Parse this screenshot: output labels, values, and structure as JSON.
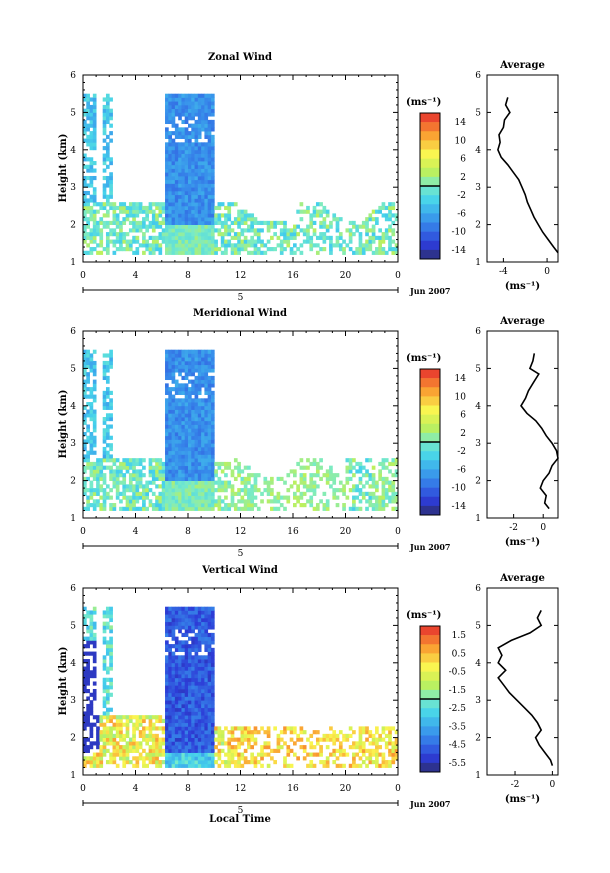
{
  "figure": {
    "xlabel_bottom": "Local Time",
    "date_label": "Jun 2007",
    "day_label": "5",
    "avg_title": "Average",
    "cbar_unit": "(ms⁻¹)",
    "avg_xlabel": "(ms⁻¹)"
  },
  "chart_data": [
    {
      "type": "heatmap",
      "title": "Zonal Wind",
      "ylabel": "Height (km)",
      "xlim": [
        0,
        24
      ],
      "ylim": [
        1,
        6
      ],
      "xticks": [
        "0",
        "4",
        "8",
        "12",
        "16",
        "20",
        "0"
      ],
      "yticks": [
        "1",
        "2",
        "3",
        "4",
        "5",
        "6"
      ],
      "colorbar": {
        "ticks": [
          "14",
          "10",
          "6",
          "2",
          "-2",
          "-6",
          "-10",
          "-14"
        ],
        "range": [
          -16,
          16
        ]
      },
      "average_profile": {
        "xticks": [
          "-4",
          "0"
        ],
        "xlim": [
          -5.5,
          1
        ],
        "points": [
          [
            -3.6,
            5.4
          ],
          [
            -3.8,
            5.2
          ],
          [
            -3.4,
            5.0
          ],
          [
            -3.9,
            4.8
          ],
          [
            -4.0,
            4.6
          ],
          [
            -4.4,
            4.4
          ],
          [
            -4.3,
            4.2
          ],
          [
            -4.5,
            4.0
          ],
          [
            -4.2,
            3.8
          ],
          [
            -3.6,
            3.6
          ],
          [
            -3.1,
            3.4
          ],
          [
            -2.6,
            3.2
          ],
          [
            -2.3,
            3.0
          ],
          [
            -2.0,
            2.8
          ],
          [
            -1.8,
            2.6
          ],
          [
            -1.5,
            2.4
          ],
          [
            -1.2,
            2.2
          ],
          [
            -0.8,
            2.0
          ],
          [
            -0.4,
            1.8
          ],
          [
            0.1,
            1.6
          ],
          [
            0.6,
            1.4
          ],
          [
            1.0,
            1.25
          ]
        ]
      }
    },
    {
      "type": "heatmap",
      "title": "Meridional Wind",
      "ylabel": "Height (km)",
      "xlim": [
        0,
        24
      ],
      "ylim": [
        1,
        6
      ],
      "xticks": [
        "0",
        "4",
        "8",
        "12",
        "16",
        "20",
        "0"
      ],
      "yticks": [
        "1",
        "2",
        "3",
        "4",
        "5",
        "6"
      ],
      "colorbar": {
        "ticks": [
          "14",
          "10",
          "6",
          "2",
          "-2",
          "-6",
          "-10",
          "-14"
        ],
        "range": [
          -16,
          16
        ]
      },
      "average_profile": {
        "xticks": [
          "-2",
          "0"
        ],
        "xlim": [
          -3.8,
          1
        ],
        "points": [
          [
            -0.6,
            5.4
          ],
          [
            -0.7,
            5.2
          ],
          [
            -0.9,
            5.0
          ],
          [
            -0.3,
            4.85
          ],
          [
            -0.7,
            4.6
          ],
          [
            -1.0,
            4.4
          ],
          [
            -1.2,
            4.2
          ],
          [
            -1.5,
            4.0
          ],
          [
            -1.1,
            3.8
          ],
          [
            -0.5,
            3.6
          ],
          [
            -0.1,
            3.4
          ],
          [
            0.2,
            3.2
          ],
          [
            0.6,
            3.0
          ],
          [
            0.9,
            2.8
          ],
          [
            1.0,
            2.6
          ],
          [
            0.6,
            2.4
          ],
          [
            0.4,
            2.2
          ],
          [
            0.0,
            2.0
          ],
          [
            -0.2,
            1.8
          ],
          [
            0.2,
            1.6
          ],
          [
            0.1,
            1.4
          ],
          [
            0.4,
            1.25
          ]
        ]
      }
    },
    {
      "type": "heatmap",
      "title": "Vertical Wind",
      "ylabel": "Height (km)",
      "xlabel": "Local Time",
      "xlim": [
        0,
        24
      ],
      "ylim": [
        1,
        6
      ],
      "xticks": [
        "0",
        "4",
        "8",
        "12",
        "16",
        "20",
        "0"
      ],
      "yticks": [
        "1",
        "2",
        "3",
        "4",
        "5",
        "6"
      ],
      "colorbar": {
        "ticks": [
          "1.5",
          "0.5",
          "-0.5",
          "-1.5",
          "-2.5",
          "-3.5",
          "-4.5",
          "-5.5"
        ],
        "range": [
          -6,
          2
        ]
      },
      "average_profile": {
        "xticks": [
          "-2",
          "0"
        ],
        "xlim": [
          -3.5,
          0.3
        ],
        "points": [
          [
            -0.6,
            5.4
          ],
          [
            -0.8,
            5.2
          ],
          [
            -0.6,
            5.0
          ],
          [
            -1.2,
            4.8
          ],
          [
            -2.2,
            4.6
          ],
          [
            -2.9,
            4.4
          ],
          [
            -2.7,
            4.2
          ],
          [
            -2.9,
            4.0
          ],
          [
            -2.5,
            3.8
          ],
          [
            -2.9,
            3.6
          ],
          [
            -2.6,
            3.4
          ],
          [
            -2.3,
            3.2
          ],
          [
            -1.9,
            3.0
          ],
          [
            -1.5,
            2.8
          ],
          [
            -1.1,
            2.6
          ],
          [
            -0.8,
            2.4
          ],
          [
            -0.6,
            2.2
          ],
          [
            -0.9,
            2.0
          ],
          [
            -0.7,
            1.8
          ],
          [
            -0.4,
            1.6
          ],
          [
            -0.1,
            1.4
          ],
          [
            0.0,
            1.25
          ]
        ]
      }
    }
  ]
}
